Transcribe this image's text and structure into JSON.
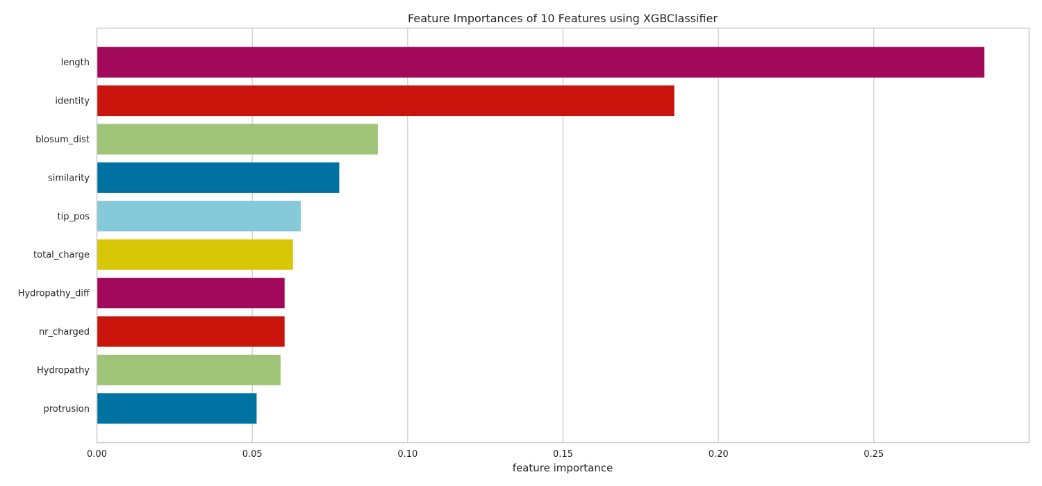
{
  "chart_data": {
    "type": "bar",
    "orientation": "horizontal",
    "title": "Feature Importances of 10 Features using XGBClassifier",
    "xlabel": "feature importance",
    "ylabel": "",
    "xlim": [
      0,
      0.3
    ],
    "x_ticks": [
      0.0,
      0.05,
      0.1,
      0.15,
      0.2,
      0.25
    ],
    "x_tick_labels": [
      "0.00",
      "0.05",
      "0.10",
      "0.15",
      "0.20",
      "0.25"
    ],
    "grid": "vertical",
    "categories": [
      "length",
      "identity",
      "blosum_dist",
      "similarity",
      "tip_pos",
      "total_charge",
      "Hydropathy_diff",
      "nr_charged",
      "Hydropathy",
      "protrusion"
    ],
    "values": [
      0.2856,
      0.1858,
      0.0904,
      0.078,
      0.0656,
      0.0631,
      0.0604,
      0.0604,
      0.0591,
      0.0514
    ],
    "colors": [
      "#a2095a",
      "#c8140a",
      "#9fc377",
      "#0072a2",
      "#86c9d9",
      "#d8c706",
      "#a2095a",
      "#c8140a",
      "#9fc377",
      "#0072a2"
    ],
    "grid_color": "#cccccc",
    "frame_color": "#cccccc"
  }
}
